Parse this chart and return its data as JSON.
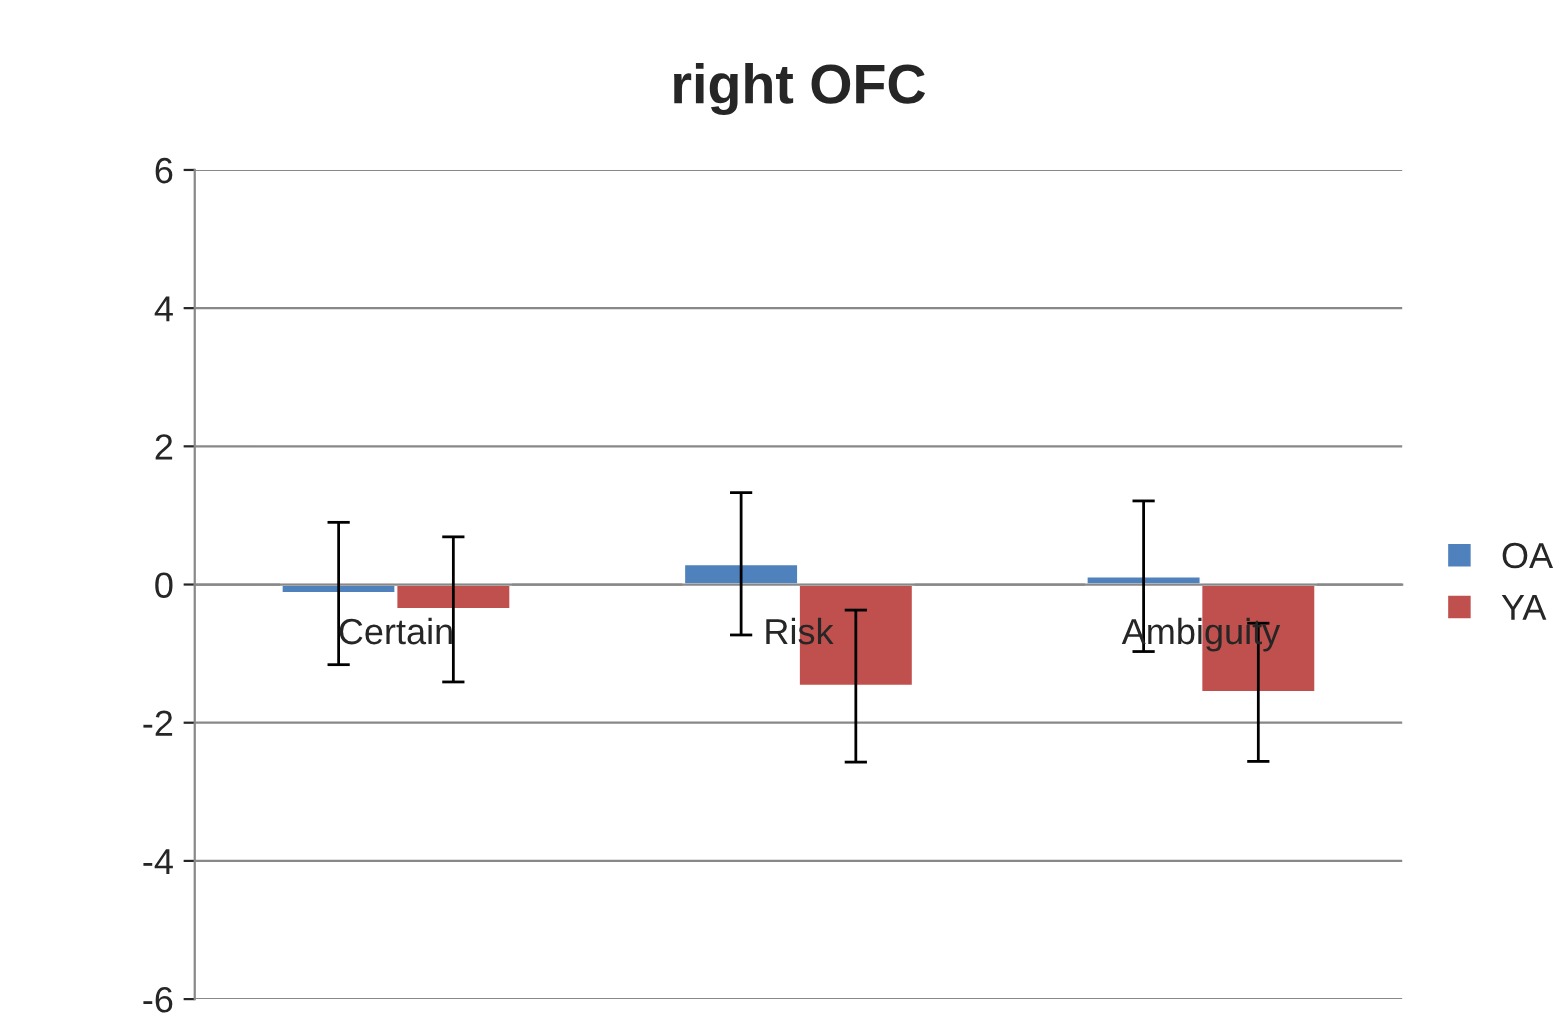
{
  "chart_data": {
    "type": "bar",
    "title": "right OFC",
    "categories": [
      "Certain",
      "Risk",
      "Ambiguity"
    ],
    "series": [
      {
        "name": "OA",
        "color": "#4f81bd",
        "values": [
          -0.13,
          0.3,
          0.12
        ],
        "errors": [
          1.03,
          1.03,
          1.09
        ]
      },
      {
        "name": "YA",
        "color": "#c0504d",
        "values": [
          -0.36,
          -1.47,
          -1.56
        ],
        "errors": [
          1.05,
          1.1,
          1.0
        ]
      }
    ],
    "ylim": [
      -6,
      6
    ],
    "yticks": [
      -6,
      -4,
      -2,
      0,
      2,
      4,
      6
    ],
    "grid": "y",
    "legend": "right"
  }
}
